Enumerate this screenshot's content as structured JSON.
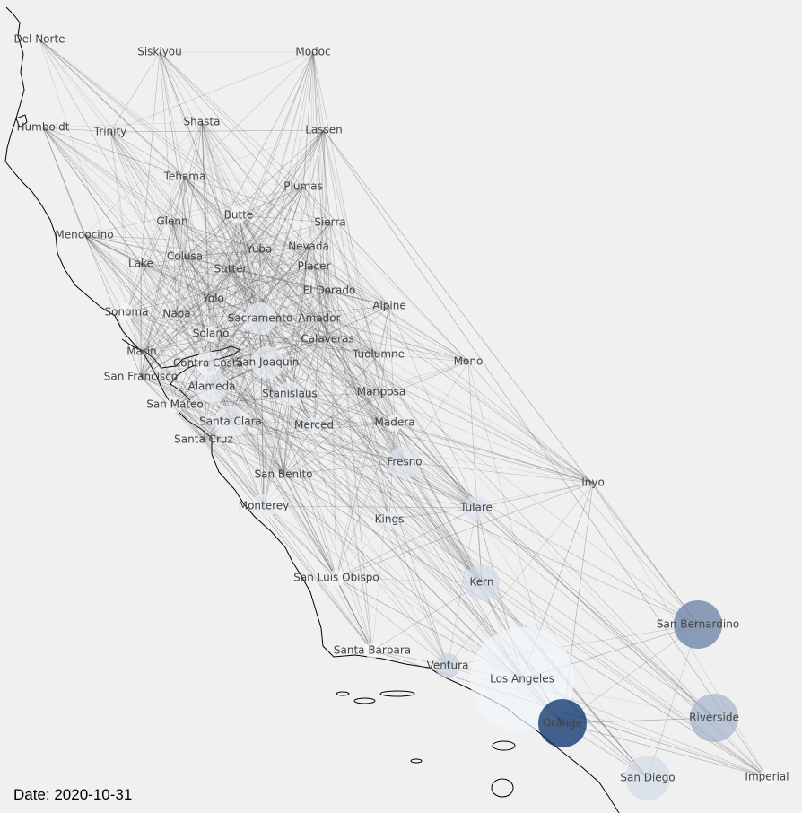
{
  "date_label": "Date: 2020-10-31",
  "colors": {
    "background": "#f0f0f0",
    "edge": "#555555",
    "coast": "#000000",
    "label": "#444444"
  },
  "legend": null,
  "counties": [
    {
      "name": "Del Norte",
      "size": 0,
      "shade": 0
    },
    {
      "name": "Siskiyou",
      "size": 0,
      "shade": 0
    },
    {
      "name": "Modoc",
      "size": 0,
      "shade": 0
    },
    {
      "name": "Humboldt",
      "size": 0,
      "shade": 0
    },
    {
      "name": "Trinity",
      "size": 0,
      "shade": 0
    },
    {
      "name": "Shasta",
      "size": 0,
      "shade": 0
    },
    {
      "name": "Lassen",
      "size": 0,
      "shade": 0
    },
    {
      "name": "Tehama",
      "size": 0,
      "shade": 0
    },
    {
      "name": "Plumas",
      "size": 0,
      "shade": 0
    },
    {
      "name": "Glenn",
      "size": 0,
      "shade": 0
    },
    {
      "name": "Butte",
      "size": 1,
      "shade": 0
    },
    {
      "name": "Sierra",
      "size": 0,
      "shade": 0
    },
    {
      "name": "Mendocino",
      "size": 0,
      "shade": 0
    },
    {
      "name": "Yuba",
      "size": 0,
      "shade": 0
    },
    {
      "name": "Nevada",
      "size": 0,
      "shade": 0
    },
    {
      "name": "Colusa",
      "size": 0,
      "shade": 0
    },
    {
      "name": "Lake",
      "size": 0,
      "shade": 0
    },
    {
      "name": "Sutter",
      "size": 0,
      "shade": 0
    },
    {
      "name": "Placer",
      "size": 0,
      "shade": 0
    },
    {
      "name": "El Dorado",
      "size": 0,
      "shade": 0
    },
    {
      "name": "Yolo",
      "size": 0,
      "shade": 0
    },
    {
      "name": "Alpine",
      "size": 0,
      "shade": 0
    },
    {
      "name": "Sonoma",
      "size": 1,
      "shade": 0
    },
    {
      "name": "Napa",
      "size": 0,
      "shade": 0
    },
    {
      "name": "Sacramento",
      "size": 3,
      "shade": 0.05
    },
    {
      "name": "Amador",
      "size": 0,
      "shade": 0
    },
    {
      "name": "Solano",
      "size": 1,
      "shade": 0
    },
    {
      "name": "Calaveras",
      "size": 0,
      "shade": 0
    },
    {
      "name": "Marin",
      "size": 0,
      "shade": 0
    },
    {
      "name": "Contra Costa",
      "size": 2,
      "shade": 0
    },
    {
      "name": "San Joaquin",
      "size": 3,
      "shade": 0.05
    },
    {
      "name": "Tuolumne",
      "size": 0,
      "shade": 0
    },
    {
      "name": "Mono",
      "size": 0,
      "shade": 0
    },
    {
      "name": "San Francisco",
      "size": 0,
      "shade": 0
    },
    {
      "name": "Alameda",
      "size": 3,
      "shade": 0.05
    },
    {
      "name": "Stanislaus",
      "size": 2,
      "shade": 0.05
    },
    {
      "name": "Mariposa",
      "size": 0,
      "shade": 0
    },
    {
      "name": "San Mateo",
      "size": 1,
      "shade": 0
    },
    {
      "name": "Santa Clara",
      "size": 3,
      "shade": 0.05
    },
    {
      "name": "Merced",
      "size": 1,
      "shade": 0.05
    },
    {
      "name": "Madera",
      "size": 1,
      "shade": 0
    },
    {
      "name": "Santa Cruz",
      "size": 0,
      "shade": 0
    },
    {
      "name": "Fresno",
      "size": 3,
      "shade": 0.1
    },
    {
      "name": "San Benito",
      "size": 0,
      "shade": 0
    },
    {
      "name": "Inyo",
      "size": 0,
      "shade": 0
    },
    {
      "name": "Monterey",
      "size": 2,
      "shade": 0.05
    },
    {
      "name": "Tulare",
      "size": 2,
      "shade": 0.1
    },
    {
      "name": "Kings",
      "size": 1,
      "shade": 0.05
    },
    {
      "name": "San Luis Obispo",
      "size": 1,
      "shade": 0
    },
    {
      "name": "Kern",
      "size": 4,
      "shade": 0.15
    },
    {
      "name": "San Bernardino",
      "size": 6,
      "shade": 0.6
    },
    {
      "name": "Santa Barbara",
      "size": 1,
      "shade": 0
    },
    {
      "name": "Ventura",
      "size": 2,
      "shade": 0.2
    },
    {
      "name": "Los Angeles",
      "size": 10,
      "shade": 0.02
    },
    {
      "name": "Orange",
      "size": 6,
      "shade": 1.0
    },
    {
      "name": "Riverside",
      "size": 6,
      "shade": 0.35
    },
    {
      "name": "San Diego",
      "size": 5,
      "shade": 0.15
    },
    {
      "name": "Imperial",
      "size": 1,
      "shade": 0
    }
  ]
}
